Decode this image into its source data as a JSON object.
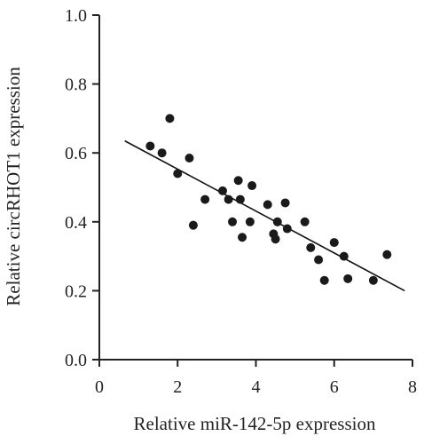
{
  "chart_data": {
    "type": "scatter",
    "title": "",
    "xlabel": "Relative miR-142-5p expression",
    "ylabel": "Relative circRHOT1 expression",
    "xlim": [
      0,
      8
    ],
    "ylim": [
      0,
      1.0
    ],
    "x_ticks": [
      "0",
      "2",
      "4",
      "6",
      "8"
    ],
    "y_ticks": [
      "0.0",
      "0.2",
      "0.4",
      "0.6",
      "0.8",
      "1.0"
    ],
    "grid": false,
    "legend": "none",
    "point_color": "#1a1a1a",
    "series": [
      {
        "points": [
          {
            "x": 1.3,
            "y": 0.62
          },
          {
            "x": 1.6,
            "y": 0.6
          },
          {
            "x": 1.8,
            "y": 0.7
          },
          {
            "x": 2.0,
            "y": 0.54
          },
          {
            "x": 2.3,
            "y": 0.585
          },
          {
            "x": 2.4,
            "y": 0.39
          },
          {
            "x": 2.7,
            "y": 0.465
          },
          {
            "x": 3.15,
            "y": 0.49
          },
          {
            "x": 3.3,
            "y": 0.465
          },
          {
            "x": 3.4,
            "y": 0.4
          },
          {
            "x": 3.55,
            "y": 0.52
          },
          {
            "x": 3.6,
            "y": 0.465
          },
          {
            "x": 3.65,
            "y": 0.355
          },
          {
            "x": 3.85,
            "y": 0.4
          },
          {
            "x": 3.9,
            "y": 0.505
          },
          {
            "x": 4.3,
            "y": 0.45
          },
          {
            "x": 4.45,
            "y": 0.365
          },
          {
            "x": 4.5,
            "y": 0.35
          },
          {
            "x": 4.55,
            "y": 0.4
          },
          {
            "x": 4.75,
            "y": 0.455
          },
          {
            "x": 4.8,
            "y": 0.38
          },
          {
            "x": 5.25,
            "y": 0.4
          },
          {
            "x": 5.4,
            "y": 0.325
          },
          {
            "x": 5.6,
            "y": 0.29
          },
          {
            "x": 5.75,
            "y": 0.23
          },
          {
            "x": 6.0,
            "y": 0.34
          },
          {
            "x": 6.25,
            "y": 0.3
          },
          {
            "x": 6.35,
            "y": 0.235
          },
          {
            "x": 7.0,
            "y": 0.23
          },
          {
            "x": 7.35,
            "y": 0.305
          }
        ]
      }
    ],
    "trendline": {
      "x": [
        0.65,
        7.8
      ],
      "y": [
        0.635,
        0.2
      ]
    }
  }
}
